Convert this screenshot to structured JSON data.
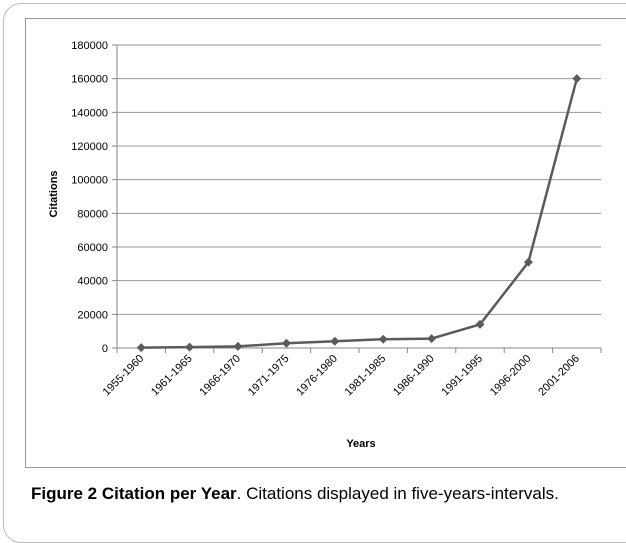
{
  "chart_data": {
    "type": "line",
    "title": "",
    "xlabel": "Years",
    "ylabel": "Citations",
    "categories": [
      "1955-1960",
      "1961-1965",
      "1966-1970",
      "1971-1975",
      "1976-1980",
      "1981-1985",
      "1986-1990",
      "1991-1995",
      "1996-2000",
      "2001-2006"
    ],
    "series": [
      {
        "values": [
          200,
          500,
          1000,
          2800,
          4000,
          5200,
          5600,
          14000,
          51000,
          160000
        ],
        "color": "#5b5b5b",
        "marker": "diamond"
      }
    ],
    "ylim": [
      0,
      180000
    ],
    "yticks": [
      0,
      20000,
      40000,
      60000,
      80000,
      100000,
      120000,
      140000,
      160000,
      180000
    ],
    "grid": true,
    "legend": "none"
  },
  "caption": {
    "label": "Figure 2 Citation per Year",
    "text": ". Citations displayed in five-years-intervals."
  }
}
